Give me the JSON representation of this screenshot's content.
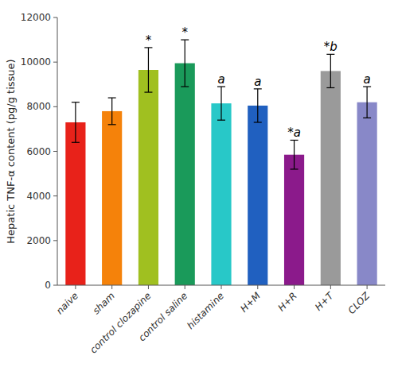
{
  "chart_data": {
    "type": "bar",
    "categories": [
      "naive",
      "sham",
      "control clozapine",
      "control saline",
      "histamine",
      "H+M",
      "H+R",
      "H+T",
      "CLOZ"
    ],
    "values": [
      7300,
      7800,
      9650,
      9950,
      8150,
      8050,
      5850,
      9600,
      8200
    ],
    "errors": [
      900,
      600,
      1000,
      1050,
      750,
      750,
      650,
      750,
      700
    ],
    "colors": [
      "#e8221a",
      "#f5820a",
      "#a0c020",
      "#1a9a5a",
      "#28c8c8",
      "#2060c0",
      "#8b1a8b",
      "#9a9a9a",
      "#8888c8"
    ],
    "ylabel": "Hepatic TNF-α content  (pg/g tissue)",
    "ylim": [
      0,
      12000
    ],
    "yticks": [
      0,
      2000,
      4000,
      6000,
      8000,
      10000,
      12000
    ],
    "grid": false,
    "annotations": [
      {
        "text": "*",
        "category": "control clozapine"
      },
      {
        "text": "*",
        "category": "control saline"
      },
      {
        "text": "a",
        "category": "histamine"
      },
      {
        "text": "a",
        "category": "H+M"
      },
      {
        "text": "*a",
        "category": "H+R"
      },
      {
        "text": "*b",
        "category": "H+T"
      },
      {
        "text": "a",
        "category": "CLOZ"
      }
    ]
  }
}
